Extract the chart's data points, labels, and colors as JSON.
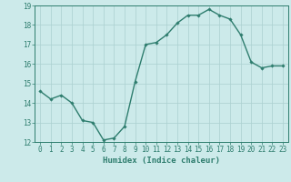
{
  "x": [
    0,
    1,
    2,
    3,
    4,
    5,
    6,
    7,
    8,
    9,
    10,
    11,
    12,
    13,
    14,
    15,
    16,
    17,
    18,
    19,
    20,
    21,
    22,
    23
  ],
  "y": [
    14.6,
    14.2,
    14.4,
    14.0,
    13.1,
    13.0,
    12.1,
    12.2,
    12.8,
    15.1,
    17.0,
    17.1,
    17.5,
    18.1,
    18.5,
    18.5,
    18.8,
    18.5,
    18.3,
    17.5,
    16.1,
    15.8,
    15.9,
    15.9
  ],
  "xlabel": "Humidex (Indice chaleur)",
  "ylim": [
    12,
    19
  ],
  "xlim": [
    -0.5,
    23.5
  ],
  "yticks": [
    12,
    13,
    14,
    15,
    16,
    17,
    18,
    19
  ],
  "xticks": [
    0,
    1,
    2,
    3,
    4,
    5,
    6,
    7,
    8,
    9,
    10,
    11,
    12,
    13,
    14,
    15,
    16,
    17,
    18,
    19,
    20,
    21,
    22,
    23
  ],
  "line_color": "#2e7d6e",
  "marker": "D",
  "marker_size": 1.8,
  "line_width": 1.0,
  "bg_color": "#cceaea",
  "grid_color": "#aad0d0",
  "axis_color": "#2e7d6e",
  "tick_color": "#2e7d6e",
  "label_fontsize": 6.5,
  "tick_fontsize": 5.5
}
